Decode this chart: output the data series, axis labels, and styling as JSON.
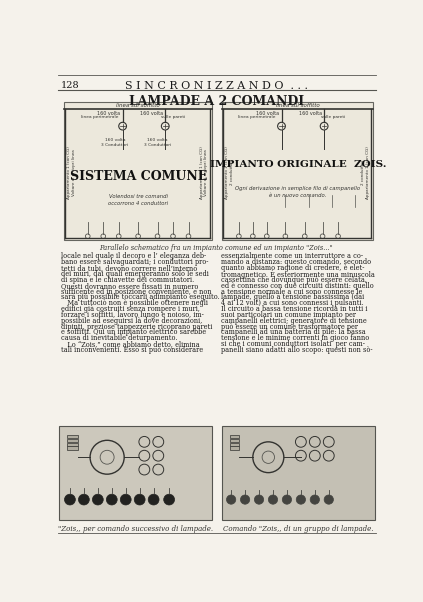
{
  "page_number": "128",
  "title_header": "S I N C R O N I Z Z A N D O  . . .",
  "section_title": "LAMPADE A 2 COMANDI",
  "left_diagram_title": "SISTEMA COMUNE",
  "right_diagram_title": "IMPIANTO ORIGINALE  ZOIS.",
  "left_diagram_note": "Volendosi tre comandi\noccorrono 4 conduttori",
  "right_diagram_note": "Ogni derivazione in semplice filo di campanello\nè un nuovo comando.",
  "caption_center": "Parallelo schematico fra un impianto comune ed un impianto \"Zois...\"",
  "body_text_left": "locale nel quale il decoro e l’ eleganza deb-\nbano essere salvaguardati; i conduttori pro-\ntetti da tubi, devono correre nell’interno\ndei muri, dai quali emergeranno solo le sedi\ndi spina e le chiavette dei commutatori.\nQuesti dovranno essere fissati in numero\nsufficente ed in posizione conveniente, e non\nsarà più possibile toccarli adimpianto eseguito.\n   Ma tuttociò non è possibile ottenere negli\nedifici già costruiti senza rompere i muri,\nforzare i soffitti, lavoro lungo e noioso, im-\npossibile ad eseguirsi là dove decorazioni,\ndipinti, preziose tappezzerie ricoprano pareti\ne soffitti. Qui un impianto elettrico sarebbe\ncausa di inevitabile deturpamento.\n   Lo “Zois,” come abbiamo detto, elimina\ntali inconvenienti. Esso si può considerare",
  "body_text_right": "essenzialmente come un interruttore a co-\nmando a distanza: questo comando, secondo\nquanto abbiamo ragione di credere, è elet-\ntromagnetico. È esteriormente una minuscola\ncassettina che dovunque può essere celata,\ned è connesso con due circuiti distinti: quello\na tensione normale a cui sono connesse le\nlampade, quello a tensione bassissima (dai\n4 ai 12 volt) a cui sono connessi i pulsanti.\nIl circuito a bassa tensione ricorda in tutti i\nsuoi particolari un comune impianto per\ncampanelli elettrici; generatore di tensione\npuò essere un comune trasformatore per\ncampanelli ad una batteria di pile: la bassa\ntensione e le minime correnti in gioco fanno\nsi che i comuni conduttori isolati  per cam-\npanelli siano adatti allo scopo: questi non sò-",
  "bottom_left_caption": "\"Zois,, per comando successivo di lampade.",
  "bottom_right_caption": "Comando \"Zois,, di un gruppo di lampade.",
  "bg_color": "#f5f2eb",
  "text_color": "#1a1a1a",
  "diagram_bg": "#ece8dc",
  "border_color": "#666660"
}
